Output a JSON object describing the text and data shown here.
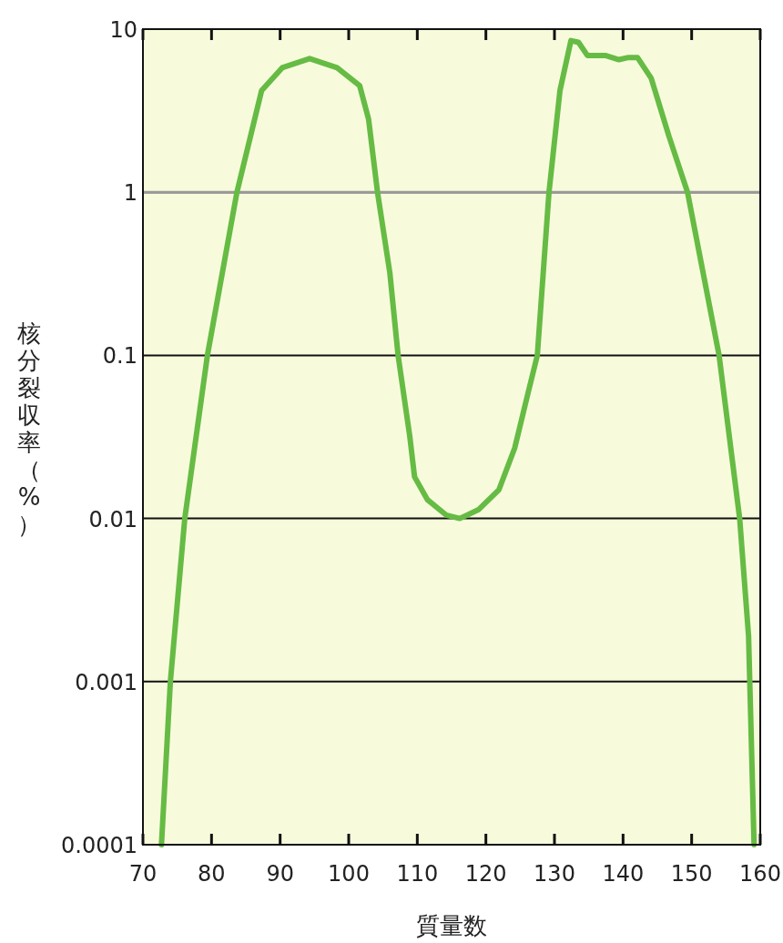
{
  "chart_data": {
    "type": "line",
    "xlabel": "質量数",
    "ylabel": "核分裂収率（%）",
    "xlim": [
      70,
      160
    ],
    "xticks": [
      70,
      80,
      90,
      100,
      110,
      120,
      130,
      140,
      150,
      160
    ],
    "ylim": [
      0.0001,
      10
    ],
    "yticks": [
      0.0001,
      0.001,
      0.01,
      0.1,
      1,
      10
    ],
    "log": true,
    "grid": "y",
    "ref_lines": [
      {
        "axis": "y",
        "value": 1,
        "color": "#999999"
      }
    ],
    "series": [
      {
        "color": "#66bb44",
        "x": [
          72.7,
          74.0,
          76.1,
          79.4,
          83.7,
          87.3,
          90.3,
          94.3,
          98.3,
          101.6,
          102.9,
          104.2,
          106,
          107.2,
          108.9,
          109.6,
          111.5,
          114.2,
          116.2,
          118.9,
          121.9,
          124.2,
          126.2,
          127.5,
          129.2,
          130.8,
          132.4,
          133.5,
          134.8,
          137.4,
          139.4,
          140.8,
          142.1,
          144.1,
          146.7,
          149.4,
          154,
          157,
          158.3,
          159.1
        ],
        "values": [
          0.0001,
          0.001,
          0.01,
          0.1,
          1,
          4.2,
          5.8,
          6.6,
          5.8,
          4.5,
          2.8,
          1,
          0.32,
          0.1,
          0.032,
          0.018,
          0.013,
          0.0105,
          0.01,
          0.0113,
          0.015,
          0.027,
          0.06,
          0.1,
          1,
          4.2,
          8.5,
          8.3,
          6.9,
          6.9,
          6.5,
          6.7,
          6.7,
          5.0,
          2.2,
          1,
          0.1,
          0.01,
          0.0019,
          0.0001
        ]
      }
    ]
  }
}
